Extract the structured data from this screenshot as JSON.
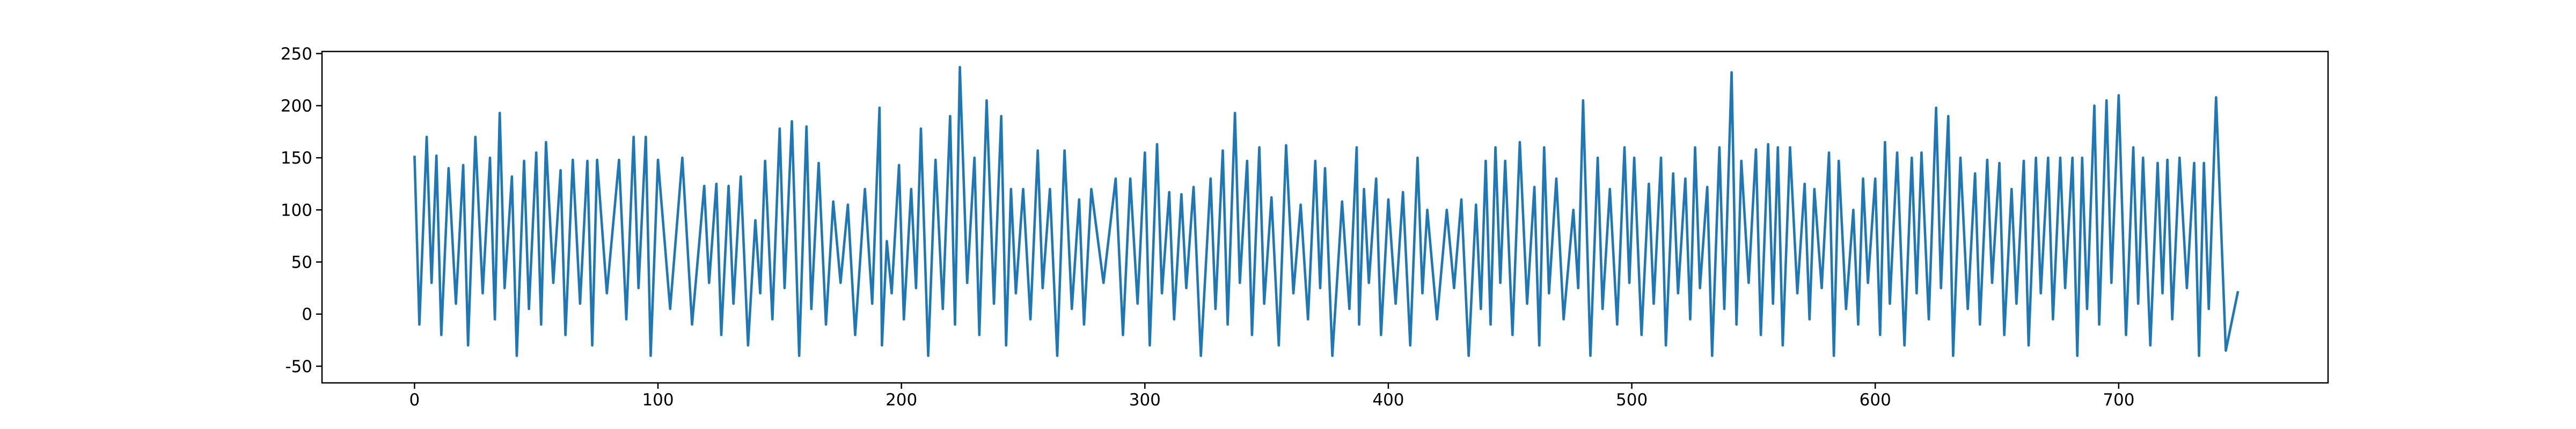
{
  "chart_data": {
    "type": "line",
    "color": "#1f77b4",
    "xlim": [
      -38,
      786
    ],
    "ylim": [
      -66,
      252
    ],
    "xticks": [
      0,
      100,
      200,
      300,
      400,
      500,
      600,
      700
    ],
    "yticks": [
      -50,
      0,
      50,
      100,
      150,
      200,
      250
    ],
    "x": [
      0,
      2,
      5,
      7,
      9,
      11,
      14,
      17,
      20,
      22,
      25,
      28,
      31,
      33,
      35,
      37,
      40,
      42,
      45,
      47,
      50,
      52,
      54,
      57,
      60,
      62,
      65,
      68,
      71,
      73,
      75,
      79,
      84,
      87,
      90,
      92,
      95,
      97,
      100,
      105,
      110,
      114,
      119,
      121,
      124,
      126,
      129,
      131,
      134,
      137,
      140,
      142,
      144,
      147,
      150,
      152,
      155,
      158,
      161,
      163,
      166,
      169,
      172,
      175,
      178,
      181,
      185,
      188,
      191,
      192,
      194,
      196,
      199,
      201,
      204,
      206,
      208,
      211,
      214,
      217,
      220,
      222,
      224,
      227,
      230,
      232,
      235,
      238,
      241,
      243,
      245,
      247,
      250,
      253,
      256,
      258,
      261,
      264,
      267,
      270,
      273,
      275,
      278,
      283,
      288,
      291,
      294,
      297,
      300,
      302,
      305,
      307,
      310,
      312,
      315,
      317,
      320,
      323,
      327,
      329,
      332,
      334,
      337,
      339,
      342,
      344,
      347,
      349,
      352,
      355,
      358,
      361,
      364,
      367,
      370,
      372,
      374,
      377,
      381,
      384,
      387,
      388,
      390,
      392,
      395,
      397,
      400,
      403,
      406,
      409,
      412,
      414,
      416,
      420,
      424,
      427,
      430,
      433,
      436,
      438,
      440,
      442,
      444,
      446,
      448,
      451,
      454,
      457,
      460,
      462,
      464,
      466,
      469,
      472,
      476,
      478,
      480,
      483,
      486,
      488,
      491,
      494,
      497,
      499,
      501,
      504,
      507,
      509,
      512,
      514,
      517,
      519,
      522,
      524,
      526,
      528,
      531,
      533,
      536,
      538,
      541,
      543,
      545,
      548,
      551,
      553,
      556,
      558,
      560,
      562,
      565,
      568,
      571,
      573,
      575,
      578,
      581,
      583,
      585,
      588,
      591,
      593,
      595,
      597,
      600,
      602,
      604,
      606,
      609,
      612,
      615,
      617,
      619,
      622,
      625,
      627,
      630,
      632,
      635,
      638,
      641,
      643,
      646,
      648,
      651,
      653,
      656,
      658,
      661,
      663,
      666,
      668,
      671,
      673,
      676,
      678,
      681,
      683,
      685,
      687,
      690,
      692,
      695,
      697,
      700,
      703,
      706,
      708,
      710,
      713,
      716,
      718,
      720,
      722,
      725,
      728,
      731,
      733,
      735,
      737,
      740,
      744,
      749
    ],
    "values": [
      152,
      -10,
      170,
      30,
      152,
      -20,
      140,
      10,
      143,
      -30,
      170,
      20,
      150,
      -5,
      193,
      25,
      132,
      -40,
      147,
      5,
      155,
      -10,
      165,
      30,
      138,
      -20,
      148,
      10,
      147,
      -30,
      148,
      20,
      148,
      -5,
      170,
      25,
      170,
      -40,
      148,
      5,
      150,
      -10,
      123,
      30,
      125,
      -20,
      123,
      10,
      132,
      -30,
      90,
      20,
      147,
      -5,
      178,
      25,
      185,
      -40,
      180,
      5,
      145,
      -10,
      108,
      30,
      105,
      -20,
      120,
      10,
      198,
      -30,
      70,
      20,
      143,
      -5,
      120,
      25,
      178,
      -40,
      148,
      5,
      190,
      -10,
      237,
      30,
      150,
      -20,
      205,
      10,
      190,
      -30,
      120,
      20,
      120,
      -5,
      157,
      25,
      120,
      -40,
      157,
      5,
      110,
      -10,
      120,
      30,
      130,
      -20,
      130,
      10,
      155,
      -30,
      163,
      20,
      117,
      -5,
      115,
      25,
      122,
      -40,
      130,
      5,
      157,
      -10,
      193,
      30,
      147,
      -20,
      160,
      10,
      112,
      -30,
      162,
      20,
      105,
      -5,
      147,
      25,
      140,
      -40,
      108,
      5,
      160,
      -10,
      120,
      30,
      130,
      -20,
      110,
      10,
      117,
      -30,
      150,
      20,
      100,
      -5,
      100,
      25,
      110,
      -40,
      105,
      5,
      147,
      -10,
      160,
      30,
      147,
      -20,
      165,
      10,
      122,
      -30,
      160,
      20,
      130,
      -5,
      100,
      25,
      205,
      -40,
      150,
      5,
      120,
      -10,
      160,
      30,
      150,
      -20,
      125,
      10,
      150,
      -30,
      135,
      20,
      130,
      -5,
      160,
      25,
      122,
      -40,
      160,
      5,
      232,
      -10,
      147,
      30,
      158,
      -20,
      163,
      10,
      160,
      -30,
      160,
      20,
      125,
      -5,
      120,
      25,
      155,
      -40,
      147,
      5,
      100,
      -10,
      130,
      30,
      130,
      -20,
      165,
      10,
      155,
      -30,
      150,
      20,
      155,
      -5,
      198,
      25,
      190,
      -40,
      150,
      5,
      135,
      -10,
      148,
      30,
      145,
      -20,
      120,
      10,
      147,
      -30,
      150,
      20,
      150,
      -5,
      150,
      25,
      150,
      -40,
      150,
      5,
      200,
      -10,
      205,
      30,
      210,
      -20,
      160,
      10,
      150,
      -30,
      145,
      20,
      148,
      -5,
      150,
      25,
      145,
      -40,
      145,
      5,
      208,
      -35,
      22
    ]
  }
}
